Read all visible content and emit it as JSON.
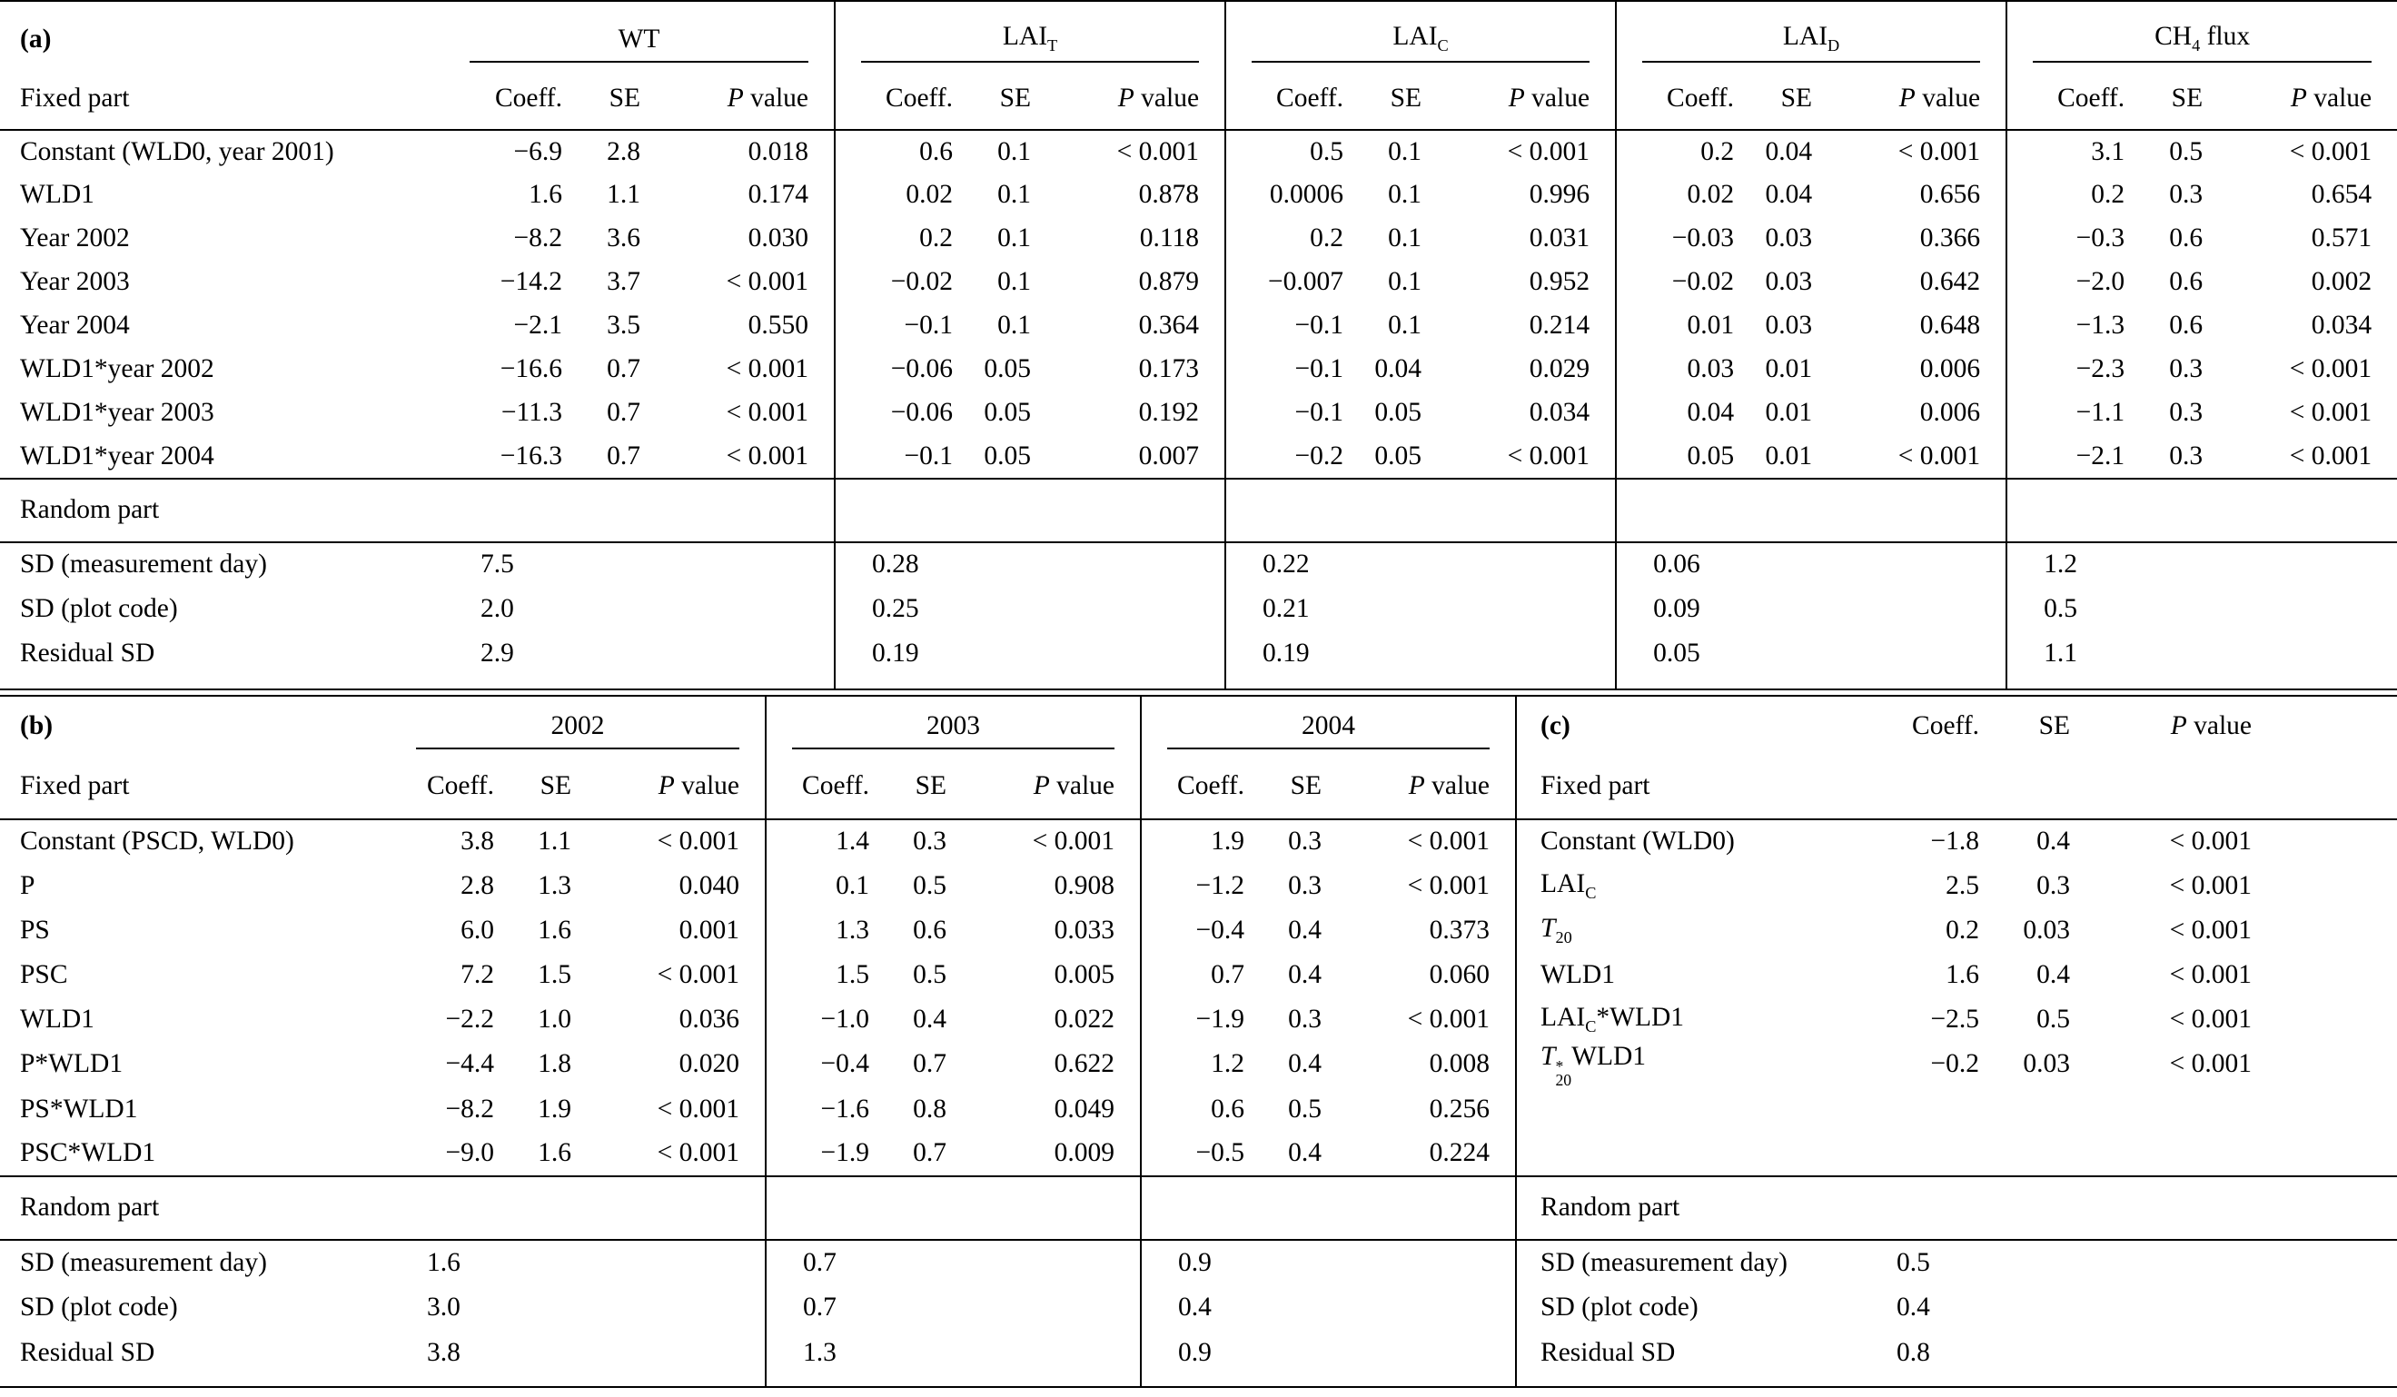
{
  "colors": {
    "background": "#ffffff",
    "text": "#000000",
    "rules": "#000000"
  },
  "headers": {
    "coeff": "Coeff.",
    "se": "SE",
    "p_value_html": "<i>P</i> value",
    "fixed_part": "Fixed part",
    "random_part": "Random part"
  },
  "table_a": {
    "panel_label": "(a)",
    "groups": [
      {
        "title_html": "WT"
      },
      {
        "title_html": "LAI<sub>T</sub>"
      },
      {
        "title_html": "LAI<sub>C</sub>"
      },
      {
        "title_html": "LAI<sub>D</sub>"
      },
      {
        "title_html": "CH<sub>4</sub> flux"
      }
    ],
    "rows": [
      {
        "label_html": "Constant (WLD0, year 2001)",
        "cells": [
          "−6.9",
          "2.8",
          "0.018",
          "0.6",
          "0.1",
          "< 0.001",
          "0.5",
          "0.1",
          "< 0.001",
          "0.2",
          "0.04",
          "< 0.001",
          "3.1",
          "0.5",
          "< 0.001"
        ]
      },
      {
        "label_html": "WLD1",
        "cells": [
          "1.6",
          "1.1",
          "0.174",
          "0.02",
          "0.1",
          "0.878",
          "0.0006",
          "0.1",
          "0.996",
          "0.02",
          "0.04",
          "0.656",
          "0.2",
          "0.3",
          "0.654"
        ]
      },
      {
        "label_html": "Year 2002",
        "cells": [
          "−8.2",
          "3.6",
          "0.030",
          "0.2",
          "0.1",
          "0.118",
          "0.2",
          "0.1",
          "0.031",
          "−0.03",
          "0.03",
          "0.366",
          "−0.3",
          "0.6",
          "0.571"
        ]
      },
      {
        "label_html": "Year 2003",
        "cells": [
          "−14.2",
          "3.7",
          "< 0.001",
          "−0.02",
          "0.1",
          "0.879",
          "−0.007",
          "0.1",
          "0.952",
          "−0.02",
          "0.03",
          "0.642",
          "−2.0",
          "0.6",
          "0.002"
        ]
      },
      {
        "label_html": "Year 2004",
        "cells": [
          "−2.1",
          "3.5",
          "0.550",
          "−0.1",
          "0.1",
          "0.364",
          "−0.1",
          "0.1",
          "0.214",
          "0.01",
          "0.03",
          "0.648",
          "−1.3",
          "0.6",
          "0.034"
        ]
      },
      {
        "label_html": "WLD1*year 2002",
        "cells": [
          "−16.6",
          "0.7",
          "< 0.001",
          "−0.06",
          "0.05",
          "0.173",
          "−0.1",
          "0.04",
          "0.029",
          "0.03",
          "0.01",
          "0.006",
          "−2.3",
          "0.3",
          "< 0.001"
        ]
      },
      {
        "label_html": "WLD1*year 2003",
        "cells": [
          "−11.3",
          "0.7",
          "< 0.001",
          "−0.06",
          "0.05",
          "0.192",
          "−0.1",
          "0.05",
          "0.034",
          "0.04",
          "0.01",
          "0.006",
          "−1.1",
          "0.3",
          "< 0.001"
        ]
      },
      {
        "label_html": "WLD1*year 2004",
        "cells": [
          "−16.3",
          "0.7",
          "< 0.001",
          "−0.1",
          "0.05",
          "0.007",
          "−0.2",
          "0.05",
          "< 0.001",
          "0.05",
          "0.01",
          "< 0.001",
          "−2.1",
          "0.3",
          "< 0.001"
        ]
      }
    ],
    "random": [
      {
        "label": "SD (measurement day)",
        "values": [
          "7.5",
          "0.28",
          "0.22",
          "0.06",
          "1.2"
        ]
      },
      {
        "label": "SD (plot code)",
        "values": [
          "2.0",
          "0.25",
          "0.21",
          "0.09",
          "0.5"
        ]
      },
      {
        "label": "Residual SD",
        "values": [
          "2.9",
          "0.19",
          "0.19",
          "0.05",
          "1.1"
        ]
      }
    ]
  },
  "table_b": {
    "panel_label": "(b)",
    "groups": [
      {
        "title_html": "2002"
      },
      {
        "title_html": "2003"
      },
      {
        "title_html": "2004"
      }
    ],
    "rows": [
      {
        "label_html": "Constant (PSCD, WLD0)",
        "cells": [
          "3.8",
          "1.1",
          "< 0.001",
          "1.4",
          "0.3",
          "< 0.001",
          "1.9",
          "0.3",
          "< 0.001"
        ]
      },
      {
        "label_html": "P",
        "cells": [
          "2.8",
          "1.3",
          "0.040",
          "0.1",
          "0.5",
          "0.908",
          "−1.2",
          "0.3",
          "< 0.001"
        ]
      },
      {
        "label_html": "PS",
        "cells": [
          "6.0",
          "1.6",
          "0.001",
          "1.3",
          "0.6",
          "0.033",
          "−0.4",
          "0.4",
          "0.373"
        ]
      },
      {
        "label_html": "PSC",
        "cells": [
          "7.2",
          "1.5",
          "< 0.001",
          "1.5",
          "0.5",
          "0.005",
          "0.7",
          "0.4",
          "0.060"
        ]
      },
      {
        "label_html": "WLD1",
        "cells": [
          "−2.2",
          "1.0",
          "0.036",
          "−1.0",
          "0.4",
          "0.022",
          "−1.9",
          "0.3",
          "< 0.001"
        ]
      },
      {
        "label_html": "P*WLD1",
        "cells": [
          "−4.4",
          "1.8",
          "0.020",
          "−0.4",
          "0.7",
          "0.622",
          "1.2",
          "0.4",
          "0.008"
        ]
      },
      {
        "label_html": "PS*WLD1",
        "cells": [
          "−8.2",
          "1.9",
          "< 0.001",
          "−1.6",
          "0.8",
          "0.049",
          "0.6",
          "0.5",
          "0.256"
        ]
      },
      {
        "label_html": "PSC*WLD1",
        "cells": [
          "−9.0",
          "1.6",
          "< 0.001",
          "−1.9",
          "0.7",
          "0.009",
          "−0.5",
          "0.4",
          "0.224"
        ]
      }
    ],
    "random": [
      {
        "label": "SD (measurement day)",
        "values": [
          "1.6",
          "0.7",
          "0.9"
        ]
      },
      {
        "label": "SD (plot code)",
        "values": [
          "3.0",
          "0.7",
          "0.4"
        ]
      },
      {
        "label": "Residual SD",
        "values": [
          "3.8",
          "1.3",
          "0.9"
        ]
      }
    ]
  },
  "table_c": {
    "panel_label": "(c)",
    "rows": [
      {
        "label_html": "Constant (WLD0)",
        "cells": [
          "−1.8",
          "0.4",
          "< 0.001"
        ]
      },
      {
        "label_html": "LAI<sub>C</sub>",
        "cells": [
          "2.5",
          "0.3",
          "< 0.001"
        ]
      },
      {
        "label_html": "<i>T</i><sub>20</sub>",
        "cells": [
          "0.2",
          "0.03",
          "< 0.001"
        ]
      },
      {
        "label_html": "WLD1",
        "cells": [
          "1.6",
          "0.4",
          "< 0.001"
        ]
      },
      {
        "label_html": "LAI<sub>C</sub>*WLD1",
        "cells": [
          "−2.5",
          "0.5",
          "< 0.001"
        ]
      },
      {
        "label_html": "<i>T</i><span class=\"supsub\"><span>*</span><span>20</span></span>WLD1",
        "cells": [
          "−0.2",
          "0.03",
          "< 0.001"
        ]
      }
    ],
    "random": [
      {
        "label": "SD (measurement day)",
        "value": "0.5"
      },
      {
        "label": "SD (plot code)",
        "value": "0.4"
      },
      {
        "label": "Residual SD",
        "value": "0.8"
      }
    ]
  }
}
